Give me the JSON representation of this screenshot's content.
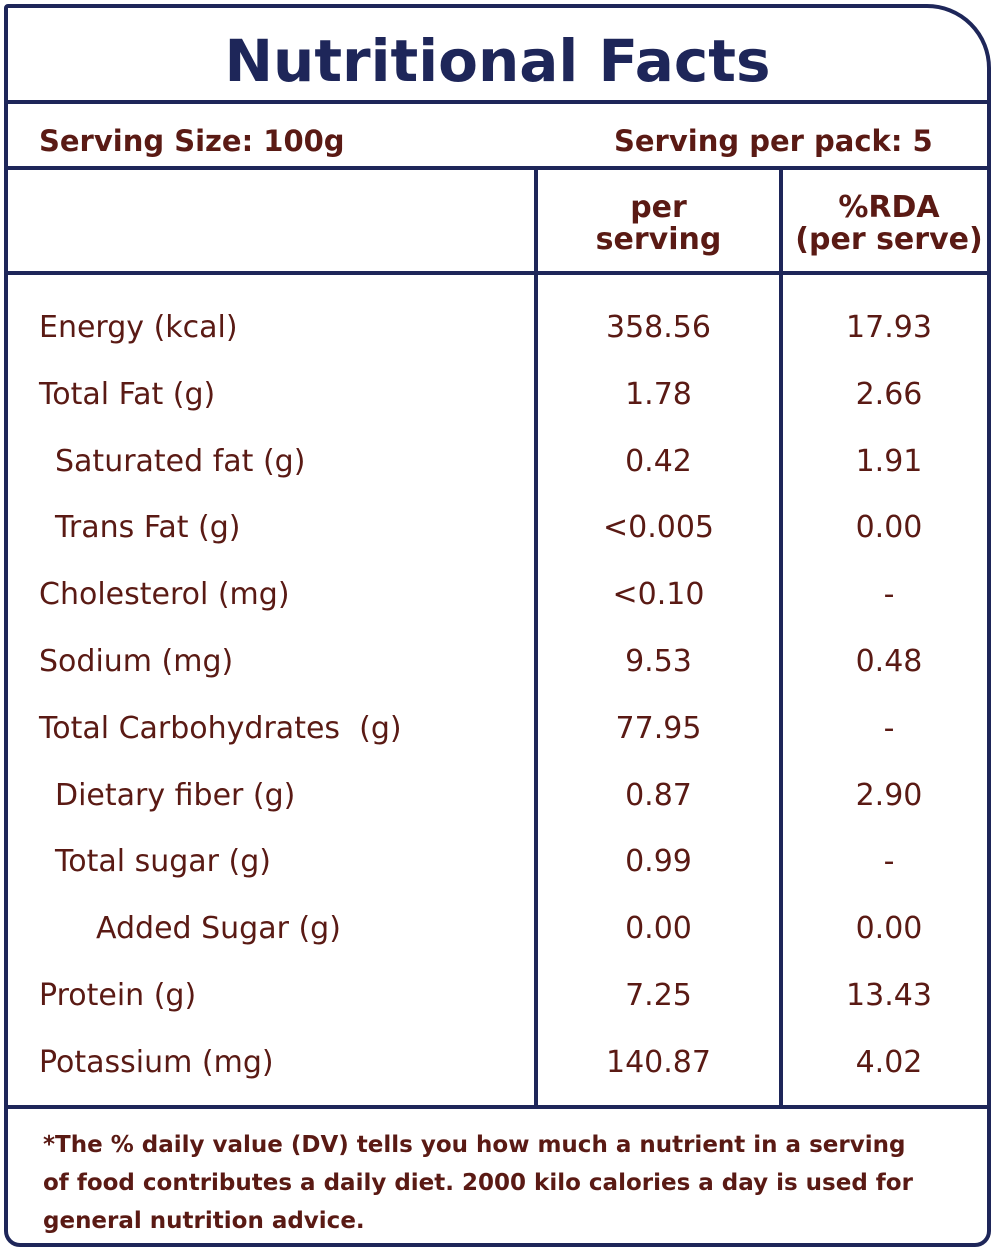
{
  "title": "Nutritional Facts",
  "serving": {
    "size": "Serving Size: 100g",
    "per_pack": "Serving per pack: 5"
  },
  "columns": {
    "per_serving_1": "per",
    "per_serving_2": "serving",
    "rda_1": "%RDA",
    "rda_2": "(per serve)"
  },
  "rows": [
    {
      "label": "Energy (kcal)",
      "indent": 0,
      "per_serving": "358.56",
      "rda": "17.93"
    },
    {
      "label": "Total Fat (g)",
      "indent": 0,
      "per_serving": "1.78",
      "rda": "2.66"
    },
    {
      "label": "Saturated fat (g)",
      "indent": 1,
      "per_serving": "0.42",
      "rda": "1.91"
    },
    {
      "label": "Trans Fat (g)",
      "indent": 1,
      "per_serving": "<0.005",
      "rda": "0.00"
    },
    {
      "label": "Cholesterol (mg)",
      "indent": 0,
      "per_serving": "<0.10",
      "rda": "-"
    },
    {
      "label": "Sodium (mg)",
      "indent": 0,
      "per_serving": "9.53",
      "rda": "0.48"
    },
    {
      "label": "Total Carbohydrates  (g)",
      "indent": 0,
      "per_serving": "77.95",
      "rda": "-"
    },
    {
      "label": "Dietary fiber (g)",
      "indent": 1,
      "per_serving": "0.87",
      "rda": "2.90"
    },
    {
      "label": "Total sugar (g)",
      "indent": 1,
      "per_serving": "0.99",
      "rda": "-"
    },
    {
      "label": "Added Sugar (g)",
      "indent": 2,
      "per_serving": "0.00",
      "rda": "0.00"
    },
    {
      "label": "Protein (g)",
      "indent": 0,
      "per_serving": "7.25",
      "rda": "13.43"
    },
    {
      "label": "Potassium (mg)",
      "indent": 0,
      "per_serving": "140.87",
      "rda": "4.02"
    }
  ],
  "footnote": {
    "line1": "*The % daily value (DV) tells you how much a nutrient in a serving",
    "line2": "of food contributes a daily diet. 2000 kilo calories a day is used for",
    "line3": "general nutrition advice."
  },
  "colors": {
    "border": "#1e2659",
    "text": "#5a1a14"
  }
}
